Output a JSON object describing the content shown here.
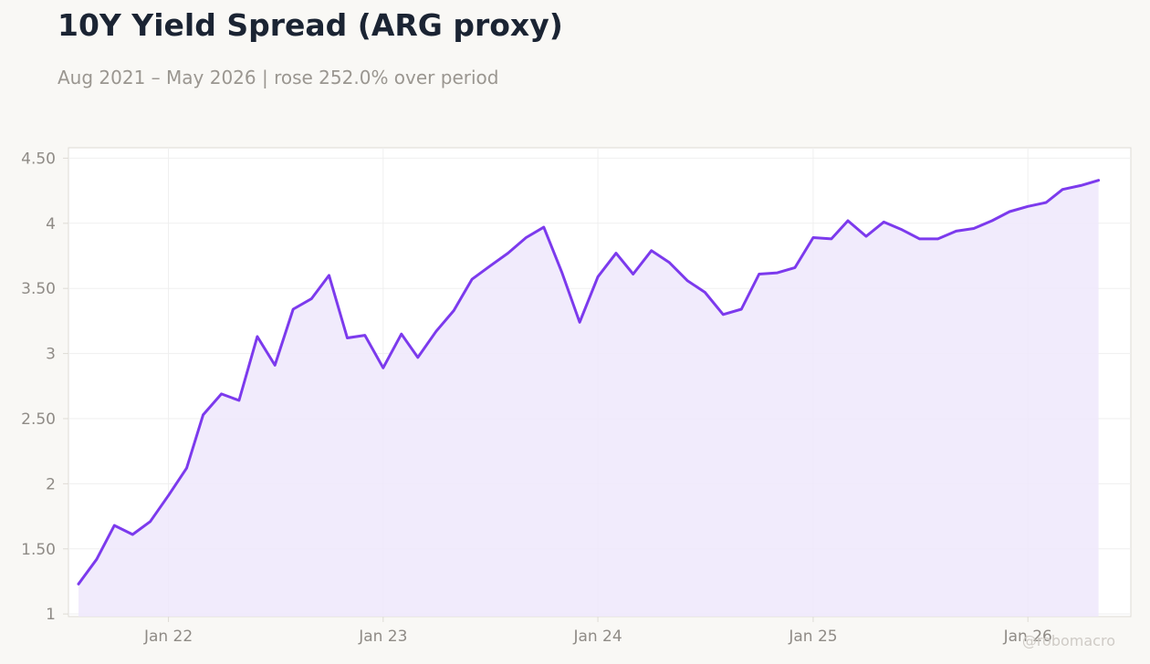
{
  "title": "10Y Yield Spread (ARG proxy)",
  "subtitle": "Aug 2021 – May 2026 | rose 252.0% over period",
  "watermark": "@robomacro",
  "colors": {
    "line": "#7c3aed",
    "area": "#efe8fc",
    "plot_bg": "#ffffff",
    "page_bg": "#f9f8f5",
    "grid": "#efefef",
    "axis": "#dedbd5"
  },
  "chart_data": {
    "type": "area",
    "title": "10Y Yield Spread (ARG proxy)",
    "xlabel": "",
    "ylabel": "",
    "x_range": [
      "2021-07-15",
      "2026-06-25"
    ],
    "ylim": [
      0.98,
      4.58
    ],
    "grid": true,
    "legend": "none",
    "y_ticks": [
      {
        "value": 1,
        "label": "1"
      },
      {
        "value": 1.5,
        "label": "1.50"
      },
      {
        "value": 2,
        "label": "2"
      },
      {
        "value": 2.5,
        "label": "2.50"
      },
      {
        "value": 3,
        "label": "3"
      },
      {
        "value": 3.5,
        "label": "3.50"
      },
      {
        "value": 4,
        "label": "4"
      },
      {
        "value": 4.5,
        "label": "4.50"
      }
    ],
    "x_ticks": [
      {
        "value": "2022-01-01",
        "label": "Jan 22"
      },
      {
        "value": "2023-01-01",
        "label": "Jan 23"
      },
      {
        "value": "2024-01-01",
        "label": "Jan 24"
      },
      {
        "value": "2025-01-01",
        "label": "Jan 25"
      },
      {
        "value": "2026-01-01",
        "label": "Jan 26"
      }
    ],
    "series": [
      {
        "x": [
          "2021-08-01",
          "2021-09-01",
          "2021-10-01",
          "2021-11-01",
          "2021-12-01",
          "2022-01-01",
          "2022-02-01",
          "2022-03-01",
          "2022-04-01",
          "2022-05-01",
          "2022-06-01",
          "2022-07-01",
          "2022-08-01",
          "2022-09-01",
          "2022-10-01",
          "2022-11-01",
          "2022-12-01",
          "2023-01-01",
          "2023-02-01",
          "2023-03-01",
          "2023-04-01",
          "2023-05-01",
          "2023-06-01",
          "2023-07-01",
          "2023-08-01",
          "2023-09-01",
          "2023-10-01",
          "2023-11-01",
          "2023-12-01",
          "2024-01-01",
          "2024-02-01",
          "2024-03-01",
          "2024-04-01",
          "2024-05-01",
          "2024-06-01",
          "2024-07-01",
          "2024-08-01",
          "2024-09-01",
          "2024-10-01",
          "2024-11-01",
          "2024-12-01",
          "2025-01-01",
          "2025-02-01",
          "2025-03-01",
          "2025-04-01",
          "2025-05-01",
          "2025-06-01",
          "2025-07-01",
          "2025-08-01",
          "2025-09-01",
          "2025-10-01",
          "2025-11-01",
          "2025-12-01",
          "2026-01-01",
          "2026-02-01",
          "2026-03-01",
          "2026-04-01",
          "2026-05-01"
        ],
        "values": [
          1.23,
          1.42,
          1.68,
          1.61,
          1.71,
          1.91,
          2.12,
          2.53,
          2.69,
          2.64,
          3.13,
          2.91,
          3.34,
          3.42,
          3.6,
          3.12,
          3.14,
          2.89,
          3.15,
          2.97,
          3.17,
          3.33,
          3.57,
          3.67,
          3.77,
          3.89,
          3.97,
          3.62,
          3.24,
          3.59,
          3.77,
          3.61,
          3.79,
          3.7,
          3.56,
          3.47,
          3.3,
          3.34,
          3.61,
          3.62,
          3.66,
          3.89,
          3.88,
          4.02,
          3.9,
          4.01,
          3.95,
          3.88,
          3.88,
          3.94,
          3.96,
          4.02,
          4.09,
          4.13,
          4.16,
          4.26,
          4.29,
          4.33
        ]
      }
    ]
  }
}
